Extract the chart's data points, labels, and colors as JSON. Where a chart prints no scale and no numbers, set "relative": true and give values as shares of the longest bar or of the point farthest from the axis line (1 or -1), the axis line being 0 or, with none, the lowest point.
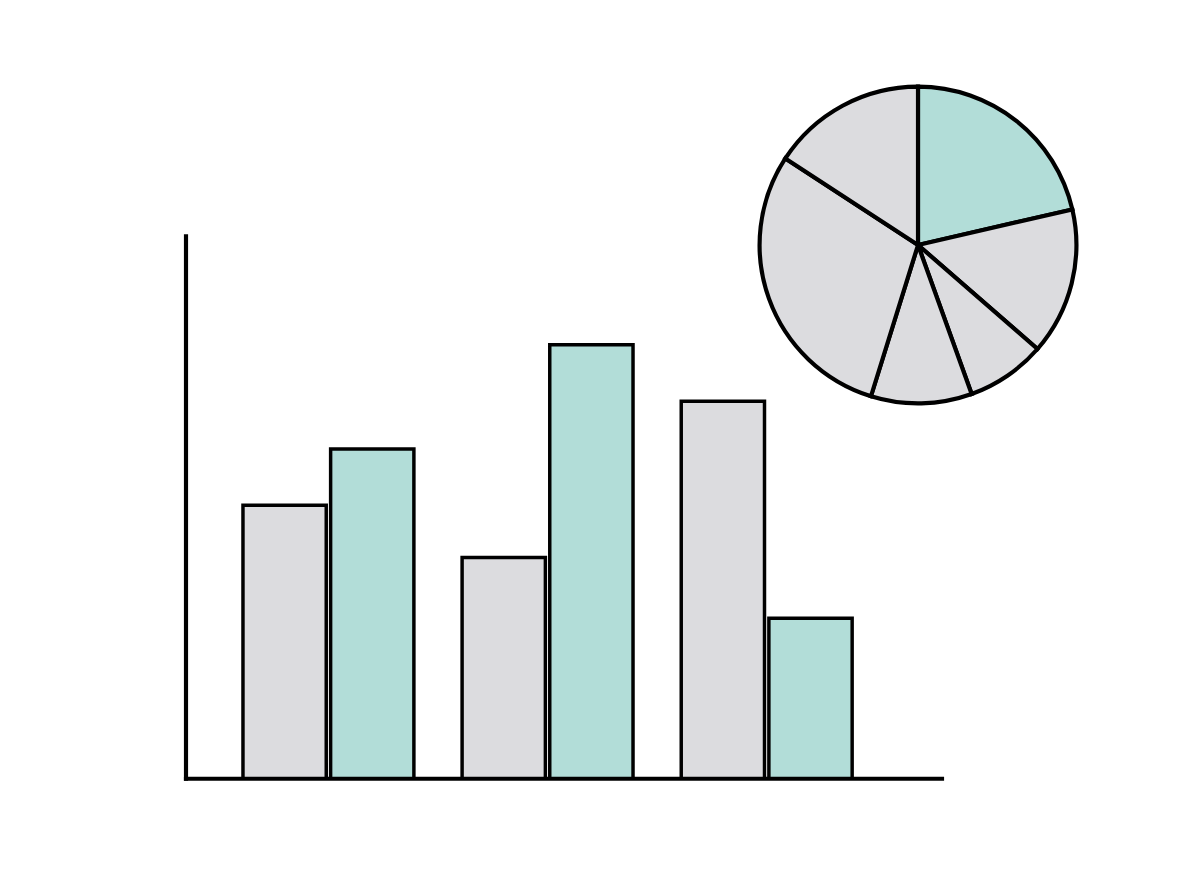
{
  "chart_data": [
    {
      "type": "bar",
      "relative": true,
      "categories": [
        null,
        null,
        null
      ],
      "series": [
        {
          "color": "#dcdcdf",
          "values": [
            0.63,
            0.51,
            0.87
          ]
        },
        {
          "color": "#b2ddd8",
          "values": [
            0.76,
            1.0,
            0.37
          ]
        }
      ]
    },
    {
      "type": "pie",
      "categories": [
        null,
        null,
        null,
        null,
        null,
        null
      ],
      "values": [
        21.4,
        15.0,
        8.1,
        10.3,
        29.4,
        15.8
      ],
      "colors": [
        "#b2ddd8",
        "#dcdcdf",
        "#dcdcdf",
        "#dcdcdf",
        "#dcdcdf",
        "#dcdcdf"
      ]
    }
  ]
}
